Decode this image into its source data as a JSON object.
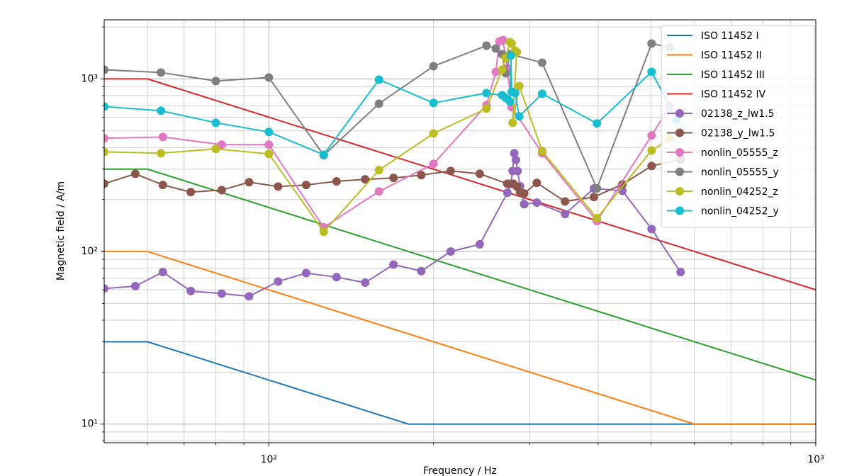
{
  "chart_data": {
    "type": "line",
    "xlabel": "Frequency / Hz",
    "ylabel": "Magnetic field / A/m",
    "log_x": true,
    "log_y": true,
    "grid": true,
    "legend": "upper right",
    "xlim": [
      50,
      1000
    ],
    "ylim": [
      7.8,
      2200
    ],
    "xticks": [
      {
        "value": 100,
        "label": "10²"
      },
      {
        "value": 1000,
        "label": "10³"
      }
    ],
    "yticks": [
      {
        "value": 10,
        "label": "10¹"
      },
      {
        "value": 100,
        "label": "10²"
      },
      {
        "value": 1000,
        "label": "10³"
      }
    ],
    "xminorticks": [
      60,
      70,
      80,
      90,
      200,
      300,
      400,
      500,
      600,
      700,
      800,
      900
    ],
    "yminorticks": [
      8,
      9,
      20,
      30,
      40,
      50,
      60,
      70,
      80,
      90,
      200,
      300,
      400,
      500,
      600,
      700,
      800,
      900,
      2000
    ],
    "series": [
      {
        "name": "ISO 11452 I",
        "color": "#1f77b4",
        "marker": false,
        "x": [
          50,
          60,
          180,
          1000
        ],
        "values": [
          30,
          30,
          10,
          10
        ]
      },
      {
        "name": "ISO 11452 II",
        "color": "#ff7f0e",
        "marker": false,
        "x": [
          50,
          60,
          600,
          1000
        ],
        "values": [
          100,
          100,
          10,
          10
        ]
      },
      {
        "name": "ISO 11452 III",
        "color": "#2ca02c",
        "marker": false,
        "x": [
          50,
          60,
          1000
        ],
        "values": [
          300,
          300,
          18
        ]
      },
      {
        "name": "ISO 11452 IV",
        "color": "#d62728",
        "marker": false,
        "x": [
          50,
          60,
          1000
        ],
        "values": [
          1000,
          1000,
          60
        ]
      },
      {
        "name": "02138_z_lw1.5",
        "color": "#9467bd",
        "marker": true,
        "x": [
          50,
          57,
          64,
          72,
          82,
          92,
          104,
          117,
          133,
          150,
          169,
          190,
          215,
          243,
          273,
          277,
          279,
          281,
          283,
          285,
          288,
          293,
          309,
          348,
          393,
          443,
          501,
          566
        ],
        "values": [
          61,
          63,
          76,
          59,
          57,
          55,
          67,
          75,
          71,
          66,
          84,
          77,
          100,
          110,
          219,
          247,
          293,
          371,
          339,
          293,
          239,
          188,
          192,
          165,
          232,
          225,
          135,
          76
        ]
      },
      {
        "name": "02138_y_lw1.5",
        "color": "#8c564b",
        "marker": true,
        "x": [
          50,
          57,
          64,
          72,
          82,
          92,
          104,
          117,
          133,
          150,
          169,
          190,
          215,
          243,
          273,
          280,
          284,
          288,
          293,
          309,
          348,
          393,
          443,
          501,
          566
        ],
        "values": [
          247,
          282,
          243,
          221,
          227,
          252,
          238,
          243,
          255,
          262,
          267,
          277,
          293,
          282,
          247,
          247,
          238,
          221,
          217,
          250,
          195,
          207,
          245,
          313,
          341
        ]
      },
      {
        "name": "nonlin_05555_z",
        "color": "#e377c2",
        "marker": true,
        "x": [
          50,
          64,
          82,
          100,
          126,
          159,
          200,
          250,
          260,
          264,
          268,
          273,
          278,
          316,
          398,
          501,
          541
        ],
        "values": [
          453,
          461,
          416,
          416,
          138,
          223,
          322,
          705,
          1099,
          1649,
          1679,
          1152,
          685,
          371,
          150,
          470,
          698
        ]
      },
      {
        "name": "nonlin_05555_y",
        "color": "#7f7f7f",
        "marker": true,
        "x": [
          50,
          63.5,
          80,
          100,
          126,
          159,
          200,
          250,
          260,
          267,
          271,
          276,
          316,
          398,
          501,
          541
        ],
        "values": [
          1130,
          1089,
          972,
          1019,
          361,
          719,
          1185,
          1559,
          1500,
          1391,
          1079,
          1391,
          1242,
          232,
          1603,
          1528
        ]
      },
      {
        "name": "nonlin_04252_z",
        "color": "#bcbd22",
        "marker": true,
        "x": [
          50,
          63.5,
          80,
          100,
          126,
          159,
          200,
          250,
          267,
          271,
          276,
          278,
          282,
          284,
          279,
          287,
          316,
          398,
          501,
          541
        ],
        "values": [
          378,
          371,
          393,
          368,
          130,
          296,
          483,
          673,
          1130,
          1327,
          1633,
          1603,
          1459,
          1431,
          557,
          910,
          382,
          156,
          385,
          449
        ]
      },
      {
        "name": "nonlin_04252_y",
        "color": "#17becf",
        "marker": true,
        "x": [
          50,
          63.5,
          80,
          100,
          126,
          159,
          200,
          250,
          267,
          271,
          276,
          277,
          278,
          282,
          287,
          316,
          398,
          501,
          557
        ],
        "values": [
          692,
          654,
          557,
          493,
          364,
          991,
          726,
          828,
          805,
          775,
          739,
          1365,
          844,
          828,
          607,
          820,
          552,
          1099,
          578
        ]
      }
    ]
  }
}
